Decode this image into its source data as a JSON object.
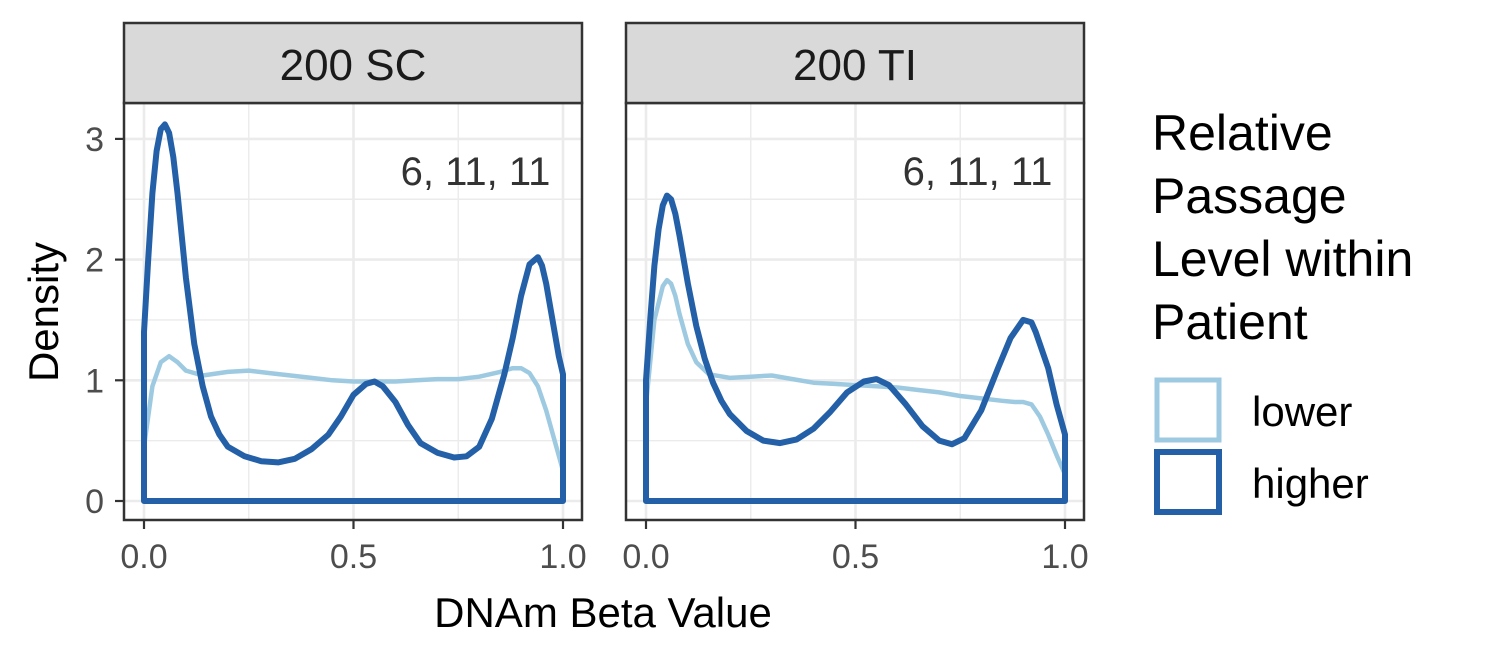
{
  "chart_data": {
    "type": "area",
    "xlabel": "DNAm Beta Value",
    "ylabel": "Density",
    "xlim": [
      0,
      1
    ],
    "ylim": [
      0,
      3.2
    ],
    "x_ticks": [
      "0.0",
      "0.5",
      "1.0"
    ],
    "y_ticks": [
      "0",
      "1",
      "2",
      "3"
    ],
    "grid": true,
    "legend": {
      "title": "Relative Passage Level within Patient",
      "title_lines": [
        "Relative",
        "Passage",
        "Level within",
        "Patient"
      ],
      "position": "right",
      "items": [
        {
          "label": "lower",
          "color": "#9ecae1"
        },
        {
          "label": "higher",
          "color": "#2460a7"
        }
      ]
    },
    "panels": [
      {
        "title": "200 SC",
        "annotation": "6, 11, 11",
        "series": [
          {
            "name": "lower",
            "color": "#9ecae1",
            "x": [
              0,
              0.02,
              0.04,
              0.06,
              0.08,
              0.1,
              0.14,
              0.2,
              0.25,
              0.3,
              0.35,
              0.4,
              0.45,
              0.5,
              0.55,
              0.6,
              0.65,
              0.7,
              0.75,
              0.8,
              0.85,
              0.88,
              0.9,
              0.92,
              0.94,
              0.96,
              0.98,
              1.0
            ],
            "y": [
              0.45,
              0.95,
              1.15,
              1.2,
              1.15,
              1.08,
              1.04,
              1.07,
              1.08,
              1.06,
              1.04,
              1.02,
              1.0,
              0.99,
              0.99,
              0.99,
              1.0,
              1.01,
              1.01,
              1.03,
              1.07,
              1.1,
              1.1,
              1.06,
              0.95,
              0.75,
              0.5,
              0.25
            ]
          },
          {
            "name": "higher",
            "color": "#2460a7",
            "x": [
              0,
              0.01,
              0.02,
              0.03,
              0.04,
              0.05,
              0.06,
              0.07,
              0.08,
              0.09,
              0.1,
              0.12,
              0.14,
              0.16,
              0.18,
              0.2,
              0.24,
              0.28,
              0.32,
              0.36,
              0.4,
              0.44,
              0.47,
              0.5,
              0.53,
              0.55,
              0.57,
              0.6,
              0.63,
              0.66,
              0.7,
              0.74,
              0.77,
              0.8,
              0.83,
              0.86,
              0.88,
              0.9,
              0.92,
              0.94,
              0.95,
              0.96,
              0.97,
              0.98,
              0.99,
              1.0
            ],
            "y": [
              1.4,
              2.0,
              2.55,
              2.9,
              3.08,
              3.12,
              3.05,
              2.85,
              2.55,
              2.2,
              1.85,
              1.3,
              0.95,
              0.7,
              0.55,
              0.45,
              0.37,
              0.33,
              0.32,
              0.35,
              0.43,
              0.55,
              0.7,
              0.88,
              0.97,
              0.99,
              0.95,
              0.82,
              0.63,
              0.48,
              0.4,
              0.36,
              0.37,
              0.45,
              0.68,
              1.05,
              1.35,
              1.7,
              1.96,
              2.02,
              1.95,
              1.8,
              1.6,
              1.4,
              1.2,
              1.05
            ]
          }
        ]
      },
      {
        "title": "200 TI",
        "annotation": "6, 11, 11",
        "series": [
          {
            "name": "lower",
            "color": "#9ecae1",
            "x": [
              0,
              0.02,
              0.04,
              0.05,
              0.06,
              0.07,
              0.08,
              0.1,
              0.12,
              0.15,
              0.2,
              0.25,
              0.3,
              0.35,
              0.4,
              0.45,
              0.5,
              0.55,
              0.6,
              0.65,
              0.7,
              0.75,
              0.8,
              0.85,
              0.88,
              0.9,
              0.92,
              0.94,
              0.96,
              0.98,
              1.0
            ],
            "y": [
              0.8,
              1.5,
              1.78,
              1.83,
              1.8,
              1.7,
              1.55,
              1.3,
              1.15,
              1.05,
              1.02,
              1.03,
              1.04,
              1.01,
              0.98,
              0.97,
              0.96,
              0.95,
              0.94,
              0.92,
              0.9,
              0.87,
              0.85,
              0.83,
              0.82,
              0.82,
              0.8,
              0.7,
              0.55,
              0.38,
              0.22
            ]
          },
          {
            "name": "higher",
            "color": "#2460a7",
            "x": [
              0,
              0.01,
              0.02,
              0.03,
              0.04,
              0.05,
              0.06,
              0.07,
              0.08,
              0.09,
              0.1,
              0.12,
              0.14,
              0.16,
              0.18,
              0.2,
              0.24,
              0.28,
              0.32,
              0.36,
              0.4,
              0.44,
              0.48,
              0.52,
              0.55,
              0.58,
              0.62,
              0.66,
              0.7,
              0.73,
              0.76,
              0.8,
              0.84,
              0.87,
              0.9,
              0.92,
              0.93,
              0.94,
              0.96,
              0.98,
              1.0
            ],
            "y": [
              1.0,
              1.5,
              1.95,
              2.25,
              2.45,
              2.53,
              2.5,
              2.38,
              2.2,
              2.0,
              1.8,
              1.45,
              1.18,
              0.98,
              0.83,
              0.72,
              0.58,
              0.5,
              0.48,
              0.51,
              0.6,
              0.74,
              0.9,
              0.99,
              1.01,
              0.96,
              0.8,
              0.62,
              0.5,
              0.47,
              0.52,
              0.75,
              1.1,
              1.35,
              1.5,
              1.48,
              1.4,
              1.3,
              1.1,
              0.8,
              0.55
            ]
          }
        ]
      }
    ]
  }
}
